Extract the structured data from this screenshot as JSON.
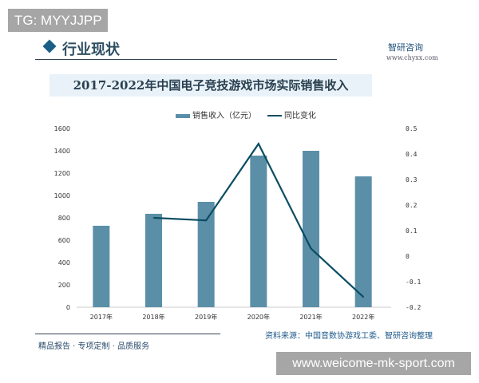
{
  "overlay_top": "TG: MYYJJPP",
  "overlay_bottom": "www.weicome-mk-sport.com",
  "header": {
    "title": "行业现状",
    "brand": "智研咨询",
    "brand_url": "www.chyxx.com"
  },
  "footer": {
    "slogan": "精品报告 · 专项定制 · 品质服务",
    "source": "资料来源：中国音数协游戏工委、智研咨询整理"
  },
  "colors": {
    "bar": "#5b8fa8",
    "line": "#0b4d63",
    "title_band": "#e8f2f8"
  },
  "chart_data": {
    "type": "bar+line",
    "title": "2017-2022年中国电子竞技游戏市场实际销售收入",
    "categories": [
      "2017年",
      "2018年",
      "2019年",
      "2020年",
      "2021年",
      "2022年"
    ],
    "series": [
      {
        "name": "销售收入（亿元）",
        "type": "bar",
        "axis": "left",
        "values": [
          729,
          836,
          943,
          1357,
          1400,
          1171
        ]
      },
      {
        "name": "同比变化",
        "type": "line",
        "axis": "right",
        "values": [
          null,
          0.15,
          0.14,
          0.44,
          0.03,
          -0.16
        ]
      }
    ],
    "ylim": [
      0,
      1600
    ],
    "yticks": [
      "0",
      "200",
      "400",
      "600",
      "800",
      "1000",
      "1200",
      "1400",
      "1600"
    ],
    "y2lim": [
      -0.2,
      0.5
    ],
    "y2ticks": [
      "-0.2",
      "-0.1",
      "0",
      "0.1",
      "0.2",
      "0.3",
      "0.4",
      "0.5"
    ],
    "legend": "top",
    "grid": false
  }
}
